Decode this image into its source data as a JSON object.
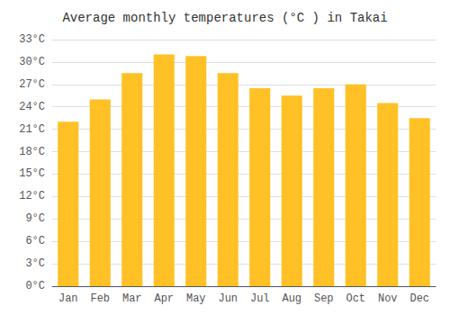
{
  "chart_data": {
    "type": "bar",
    "title": "Average monthly temperatures (°C ) in Takai",
    "categories": [
      "Jan",
      "Feb",
      "Mar",
      "Apr",
      "May",
      "Jun",
      "Jul",
      "Aug",
      "Sep",
      "Oct",
      "Nov",
      "Dec"
    ],
    "values": [
      22.0,
      25.0,
      28.5,
      31.0,
      30.8,
      28.5,
      26.5,
      25.5,
      26.5,
      27.0,
      24.5,
      22.5
    ],
    "color": "#FFC125",
    "ylim": [
      0,
      33
    ],
    "yticks": [
      {
        "value": 0,
        "label": "0°C"
      },
      {
        "value": 3,
        "label": "3°C"
      },
      {
        "value": 6,
        "label": "6°C"
      },
      {
        "value": 9,
        "label": "9°C"
      },
      {
        "value": 12,
        "label": "12°C"
      },
      {
        "value": 15,
        "label": "15°C"
      },
      {
        "value": 18,
        "label": "18°C"
      },
      {
        "value": 21,
        "label": "21°C"
      },
      {
        "value": 24,
        "label": "24°C"
      },
      {
        "value": 27,
        "label": "27°C"
      },
      {
        "value": 30,
        "label": "30°C"
      },
      {
        "value": 33,
        "label": "33°C"
      }
    ],
    "grid": true
  }
}
